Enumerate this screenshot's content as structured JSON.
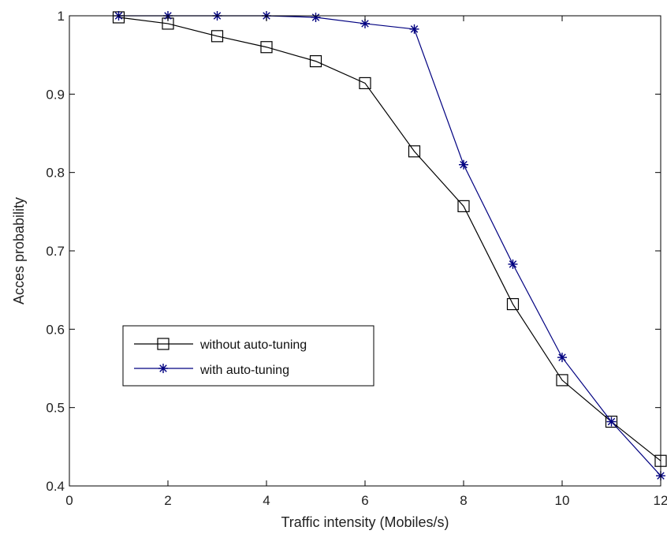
{
  "chart_data": {
    "type": "line",
    "xlabel": "Traffic intensity (Mobiles/s)",
    "ylabel": "Acces probability",
    "xlim": [
      0,
      12
    ],
    "ylim": [
      0.4,
      1
    ],
    "xticks": [
      0,
      2,
      4,
      6,
      8,
      10,
      12
    ],
    "yticks": [
      0.4,
      0.5,
      0.6,
      0.7,
      0.8,
      0.9,
      1
    ],
    "xtick_labels": [
      "0",
      "2",
      "4",
      "6",
      "8",
      "10",
      "12"
    ],
    "ytick_labels": [
      "0.4",
      "0.5",
      "0.6",
      "0.7",
      "0.8",
      "0.9",
      "1"
    ],
    "grid": false,
    "legend_position": "lower-left",
    "series": [
      {
        "name": "without auto-tuning",
        "color": "#000000",
        "marker": "square",
        "x": [
          1,
          2,
          3,
          4,
          5,
          6,
          7,
          8,
          9,
          10,
          11,
          12
        ],
        "y": [
          0.998,
          0.99,
          0.974,
          0.96,
          0.942,
          0.914,
          0.827,
          0.757,
          0.632,
          0.535,
          0.482,
          0.432
        ]
      },
      {
        "name": "with auto-tuning",
        "color": "#000080",
        "marker": "asterisk",
        "x": [
          1,
          2,
          3,
          4,
          5,
          6,
          7,
          8,
          9,
          10,
          11,
          12
        ],
        "y": [
          1.0,
          1.0,
          1.0,
          1.0,
          0.998,
          0.99,
          0.983,
          0.81,
          0.683,
          0.564,
          0.482,
          0.413
        ]
      }
    ]
  }
}
